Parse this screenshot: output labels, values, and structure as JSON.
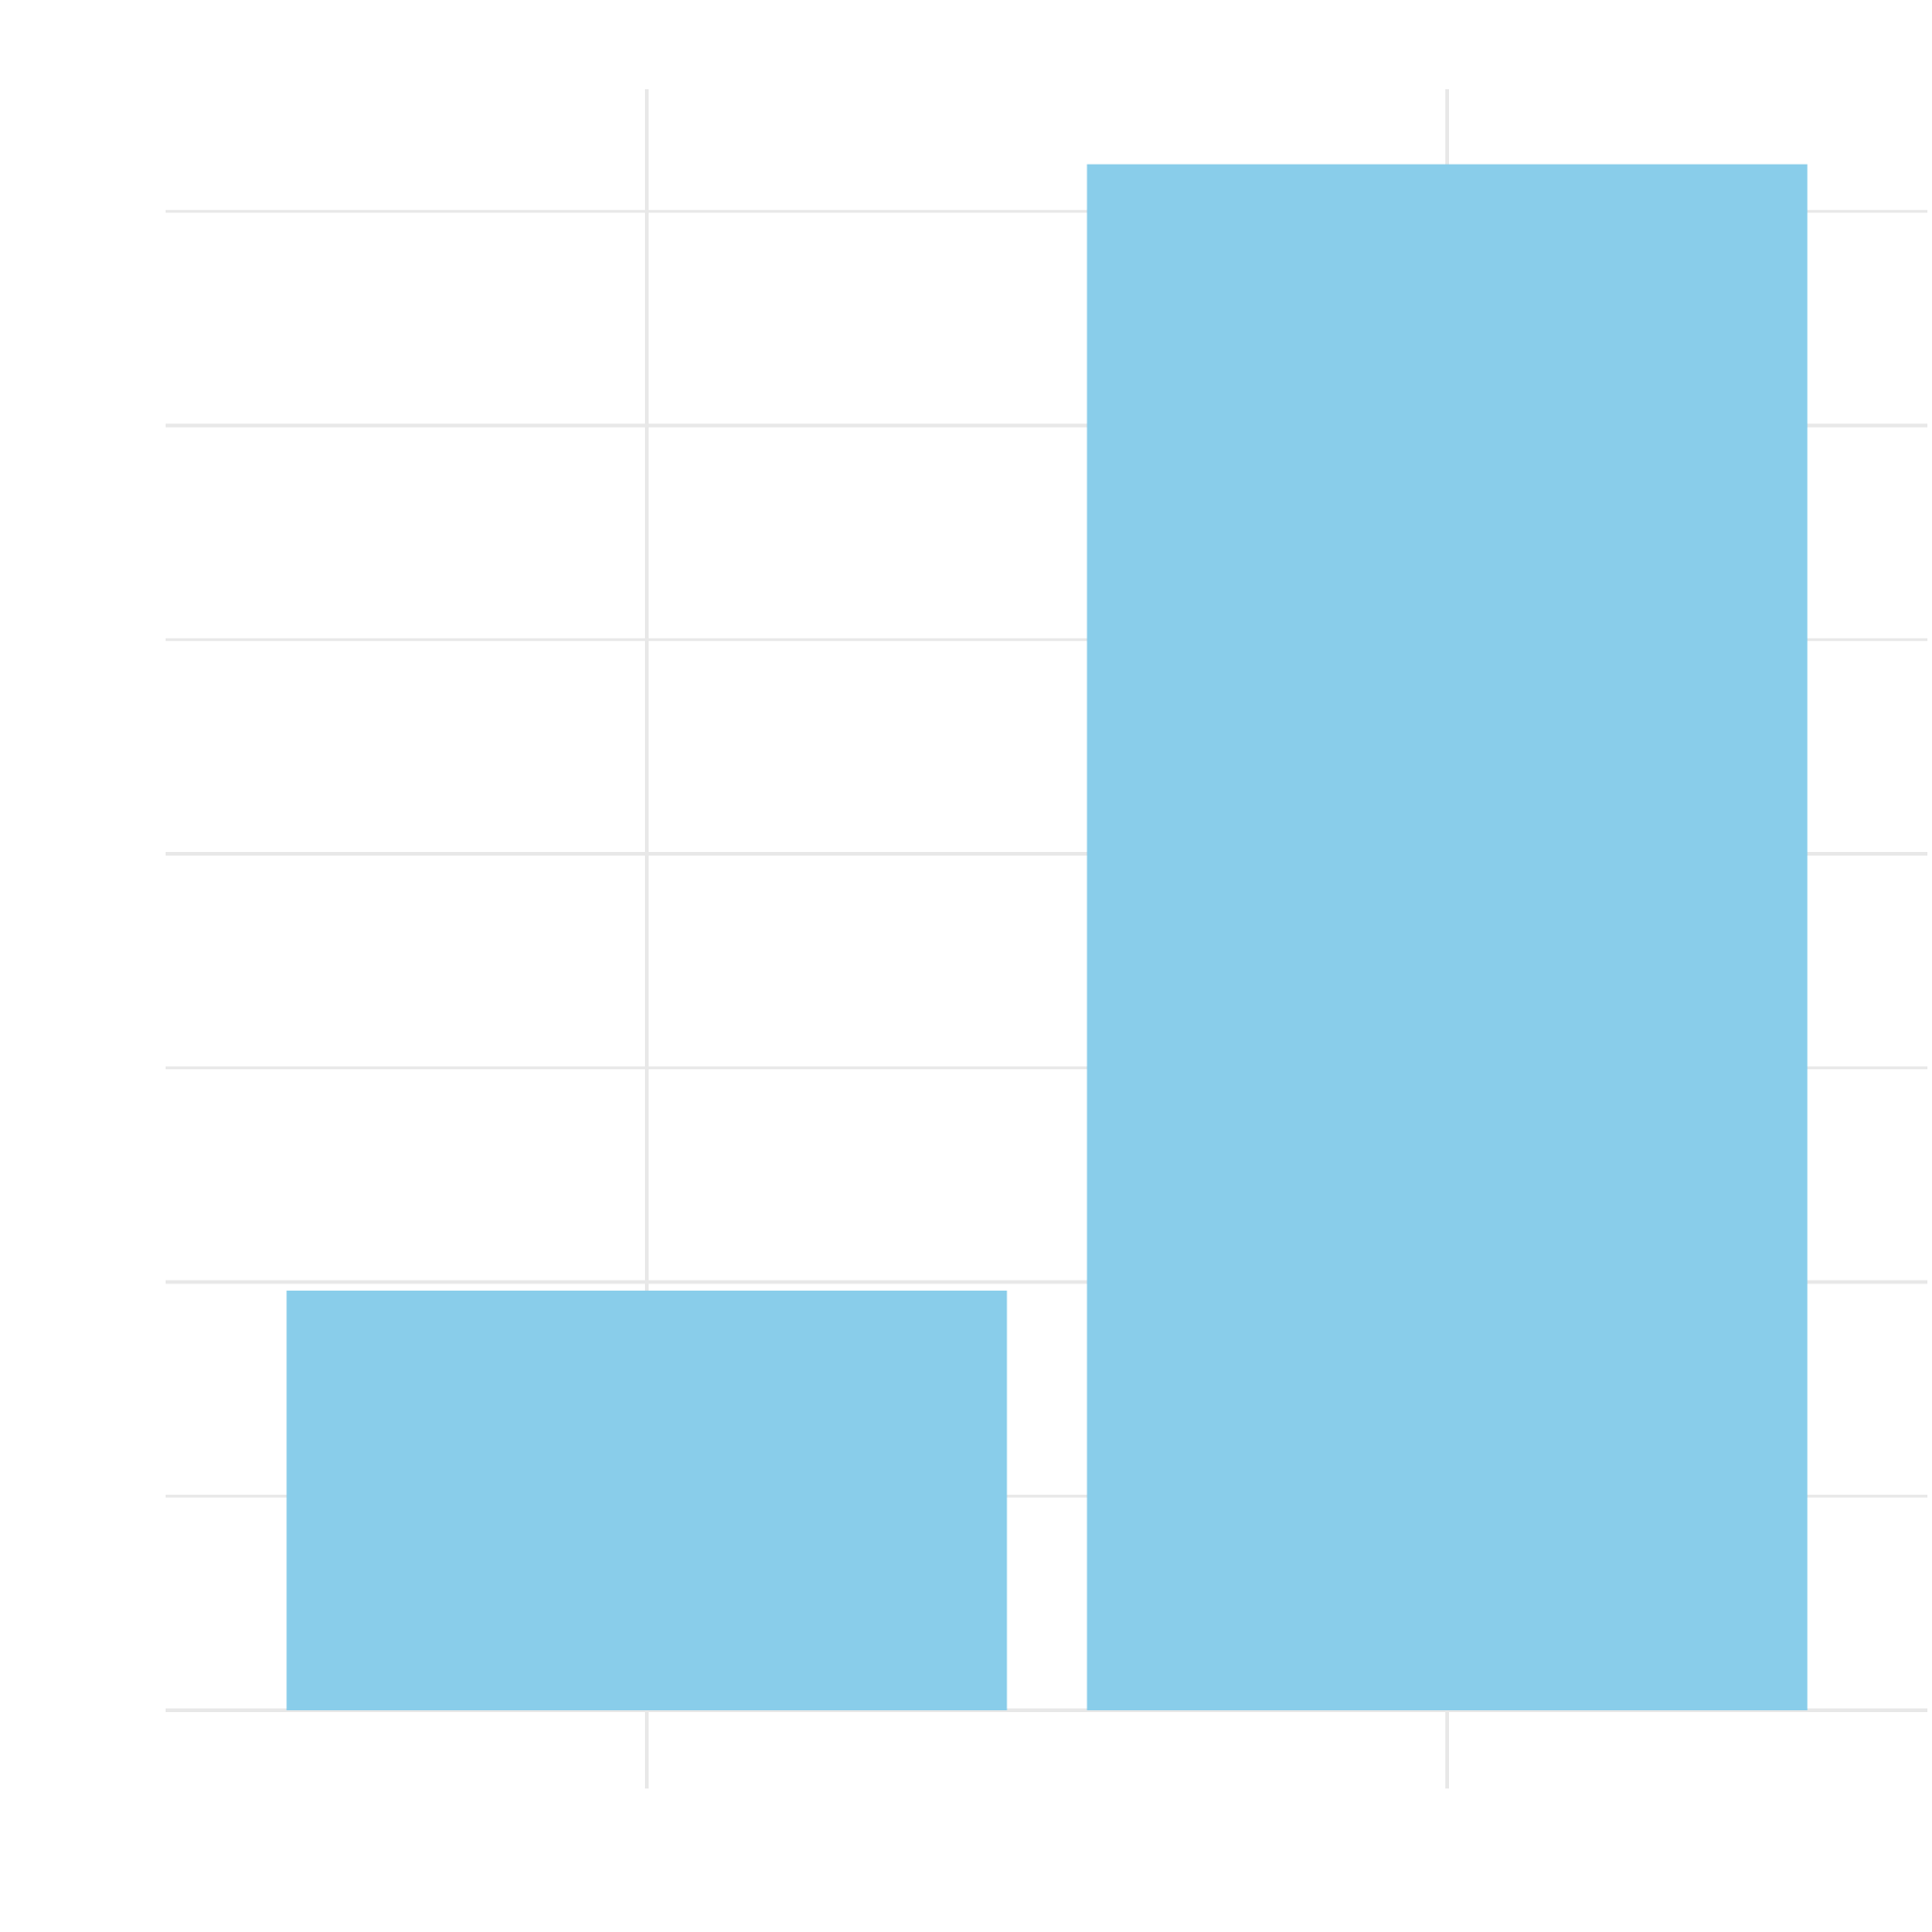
{
  "chart_data": {
    "type": "bar",
    "categories": [
      "",
      ""
    ],
    "values": [
      0.98,
      3.61
    ],
    "ylim": [
      0,
      4
    ],
    "y_gridlines": [
      0,
      0.5,
      1,
      1.5,
      2,
      2.5,
      3,
      3.5
    ],
    "grid": true,
    "legend": "none",
    "title": "",
    "xlabel": "",
    "ylabel": "",
    "colors": {
      "bar": "#89CDEA",
      "grid": "#E8E8E8",
      "background": "#FFFFFF"
    }
  }
}
